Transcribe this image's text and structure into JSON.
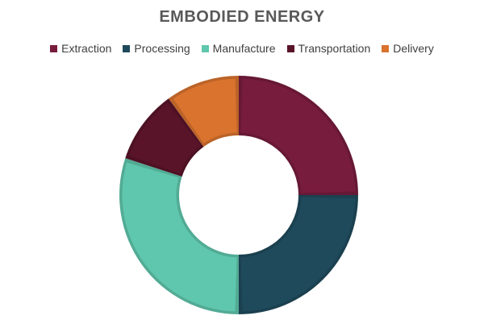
{
  "chart_data": {
    "type": "pie",
    "variant": "donut",
    "title": "EMBODIED ENERGY",
    "legend_position": "top",
    "categories": [
      "Extraction",
      "Processing",
      "Manufacture",
      "Transportation",
      "Delivery"
    ],
    "values": [
      25,
      25,
      30,
      10,
      10
    ],
    "colors": [
      "#781C3D",
      "#1F4A5C",
      "#5FC7AD",
      "#591429",
      "#D9732E"
    ]
  }
}
